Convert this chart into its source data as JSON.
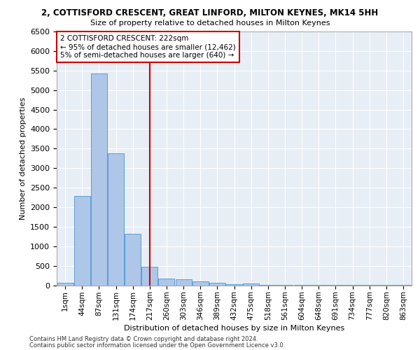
{
  "title": "2, COTTISFORD CRESCENT, GREAT LINFORD, MILTON KEYNES, MK14 5HH",
  "subtitle": "Size of property relative to detached houses in Milton Keynes",
  "xlabel": "Distribution of detached houses by size in Milton Keynes",
  "ylabel": "Number of detached properties",
  "bar_color": "#aec6e8",
  "bar_edge_color": "#5a9fd4",
  "background_color": "#e8eef5",
  "grid_color": "#ffffff",
  "categories": [
    "1sqm",
    "44sqm",
    "87sqm",
    "131sqm",
    "174sqm",
    "217sqm",
    "260sqm",
    "303sqm",
    "346sqm",
    "389sqm",
    "432sqm",
    "475sqm",
    "518sqm",
    "561sqm",
    "604sqm",
    "648sqm",
    "691sqm",
    "734sqm",
    "777sqm",
    "820sqm",
    "863sqm"
  ],
  "values": [
    55,
    2280,
    5420,
    3380,
    1310,
    480,
    170,
    150,
    90,
    55,
    30,
    50,
    10,
    8,
    5,
    4,
    3,
    2,
    2,
    2,
    2
  ],
  "vline_index": 5,
  "vline_color": "#cc0000",
  "annotation_text": "2 COTTISFORD CRESCENT: 222sqm\n← 95% of detached houses are smaller (12,462)\n5% of semi-detached houses are larger (640) →",
  "annotation_box_color": "#cc0000",
  "ylim": [
    0,
    6500
  ],
  "yticks": [
    0,
    500,
    1000,
    1500,
    2000,
    2500,
    3000,
    3500,
    4000,
    4500,
    5000,
    5500,
    6000,
    6500
  ],
  "footer_line1": "Contains HM Land Registry data © Crown copyright and database right 2024.",
  "footer_line2": "Contains public sector information licensed under the Open Government Licence v3.0."
}
